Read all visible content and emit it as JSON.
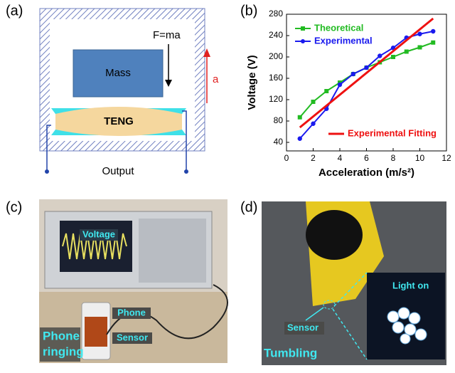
{
  "panels": {
    "a": {
      "label": "(a)",
      "force": "F=ma",
      "mass": "Mass",
      "teng": "TENG",
      "accel": "a",
      "output": "Output"
    },
    "c": {
      "label": "(c)",
      "voltage": "Voltage",
      "phone": "Phone",
      "sensor": "Sensor",
      "caption": [
        "Phone",
        "ringing"
      ]
    },
    "d": {
      "label": "(d)",
      "light": "Light on",
      "sensor": "Sensor",
      "caption": "Tumbling"
    }
  },
  "chart_data": {
    "type": "line",
    "label": "(b)",
    "x_label": "Acceleration (m/s²)",
    "y_label": "Voltage (V)",
    "x": [
      1,
      2,
      3,
      4,
      5,
      6,
      7,
      8,
      9,
      10,
      11
    ],
    "series": [
      {
        "name": "Theoretical",
        "color": "#22bb22",
        "marker": "square",
        "values": [
          87,
          116,
          136,
          152,
          168,
          180,
          190,
          200,
          210,
          218,
          227
        ]
      },
      {
        "name": "Experimental",
        "color": "#1a1aee",
        "marker": "circle",
        "values": [
          47,
          75,
          103,
          148,
          168,
          180,
          202,
          217,
          236,
          243,
          248
        ]
      },
      {
        "name": "Experimental Fitting",
        "color": "#ee1111",
        "x": [
          1,
          11
        ],
        "values": [
          68,
          272
        ]
      }
    ],
    "xlim": [
      0,
      12
    ],
    "xticks": [
      0,
      2,
      4,
      6,
      8,
      10,
      12
    ],
    "ylim": [
      24,
      280
    ],
    "yticks": [
      40,
      80,
      120,
      160,
      200,
      240,
      280
    ]
  }
}
